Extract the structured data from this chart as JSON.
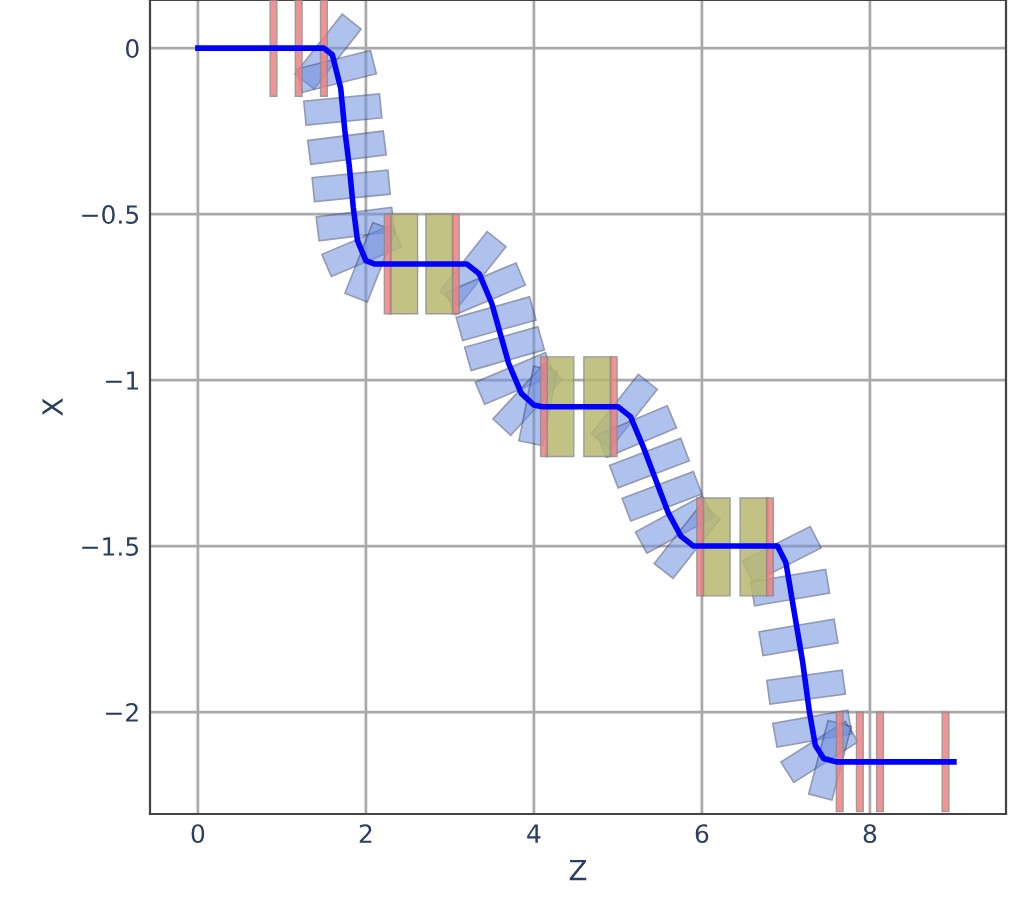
{
  "chart_data": {
    "type": "line",
    "xlabel": "Z",
    "ylabel": "X",
    "x": [
      0,
      1.5,
      1.6,
      1.7,
      1.75,
      1.8,
      1.85,
      1.9,
      2.0,
      2.1,
      3.2,
      3.35,
      3.5,
      3.6,
      3.7,
      3.85,
      4.0,
      4.1,
      5.0,
      5.15,
      5.3,
      5.45,
      5.6,
      5.75,
      5.9,
      6.9,
      7.0,
      7.1,
      7.2,
      7.28,
      7.35,
      7.45,
      7.6,
      9.0
    ],
    "series": [
      {
        "type": "bar",
        "color": "#b8b870",
        "x": [
          2.45,
          2.88,
          4.31,
          4.76,
          6.17,
          6.62
        ],
        "base": [
          -0.8,
          -0.8,
          -1.23,
          -1.23,
          -1.65,
          -1.65
        ],
        "values": [
          0.3,
          0.3,
          0.3,
          0.3,
          0.295,
          0.295
        ]
      },
      {
        "type": "bar",
        "color": "#f08080",
        "x": [
          0.9,
          1.2,
          1.5,
          2.26,
          3.07,
          4.12,
          4.95,
          5.98,
          6.81,
          7.64,
          7.88,
          8.12,
          8.9
        ],
        "base": [
          -0.145,
          -0.145,
          -0.145,
          -0.8,
          -0.8,
          -1.23,
          -1.23,
          -1.65,
          -1.65,
          -2.3,
          -2.3,
          -2.3,
          -2.3
        ],
        "values": [
          0.29,
          0.29,
          0.29,
          0.3,
          0.3,
          0.3,
          0.3,
          0.295,
          0.295,
          0.3,
          0.3,
          0.3,
          0.3
        ]
      },
      {
        "color": "#0000ff",
        "values": [
          0,
          0,
          -0.02,
          -0.12,
          -0.25,
          -0.35,
          -0.48,
          -0.58,
          -0.64,
          -0.65,
          -0.65,
          -0.68,
          -0.77,
          -0.86,
          -0.95,
          -1.04,
          -1.075,
          -1.08,
          -1.08,
          -1.11,
          -1.2,
          -1.3,
          -1.4,
          -1.47,
          -1.5,
          -1.5,
          -1.55,
          -1.7,
          -1.85,
          -2.0,
          -2.1,
          -2.14,
          -2.15,
          -2.15
        ]
      }
    ],
    "xlim": [
      -0.57,
      9.62
    ],
    "ylim": [
      -2.307,
      0.145
    ],
    "xticks": [
      0,
      2,
      4,
      6,
      8
    ],
    "yticks": [
      0,
      {
        "value": -0.5,
        "label": "−0.5"
      },
      {
        "value": -1,
        "label": "−1"
      },
      {
        "value": -1.5,
        "label": "−1.5"
      },
      {
        "value": -2,
        "label": "−2"
      }
    ],
    "grid": true,
    "marker": "none",
    "line_style": "solid"
  }
}
